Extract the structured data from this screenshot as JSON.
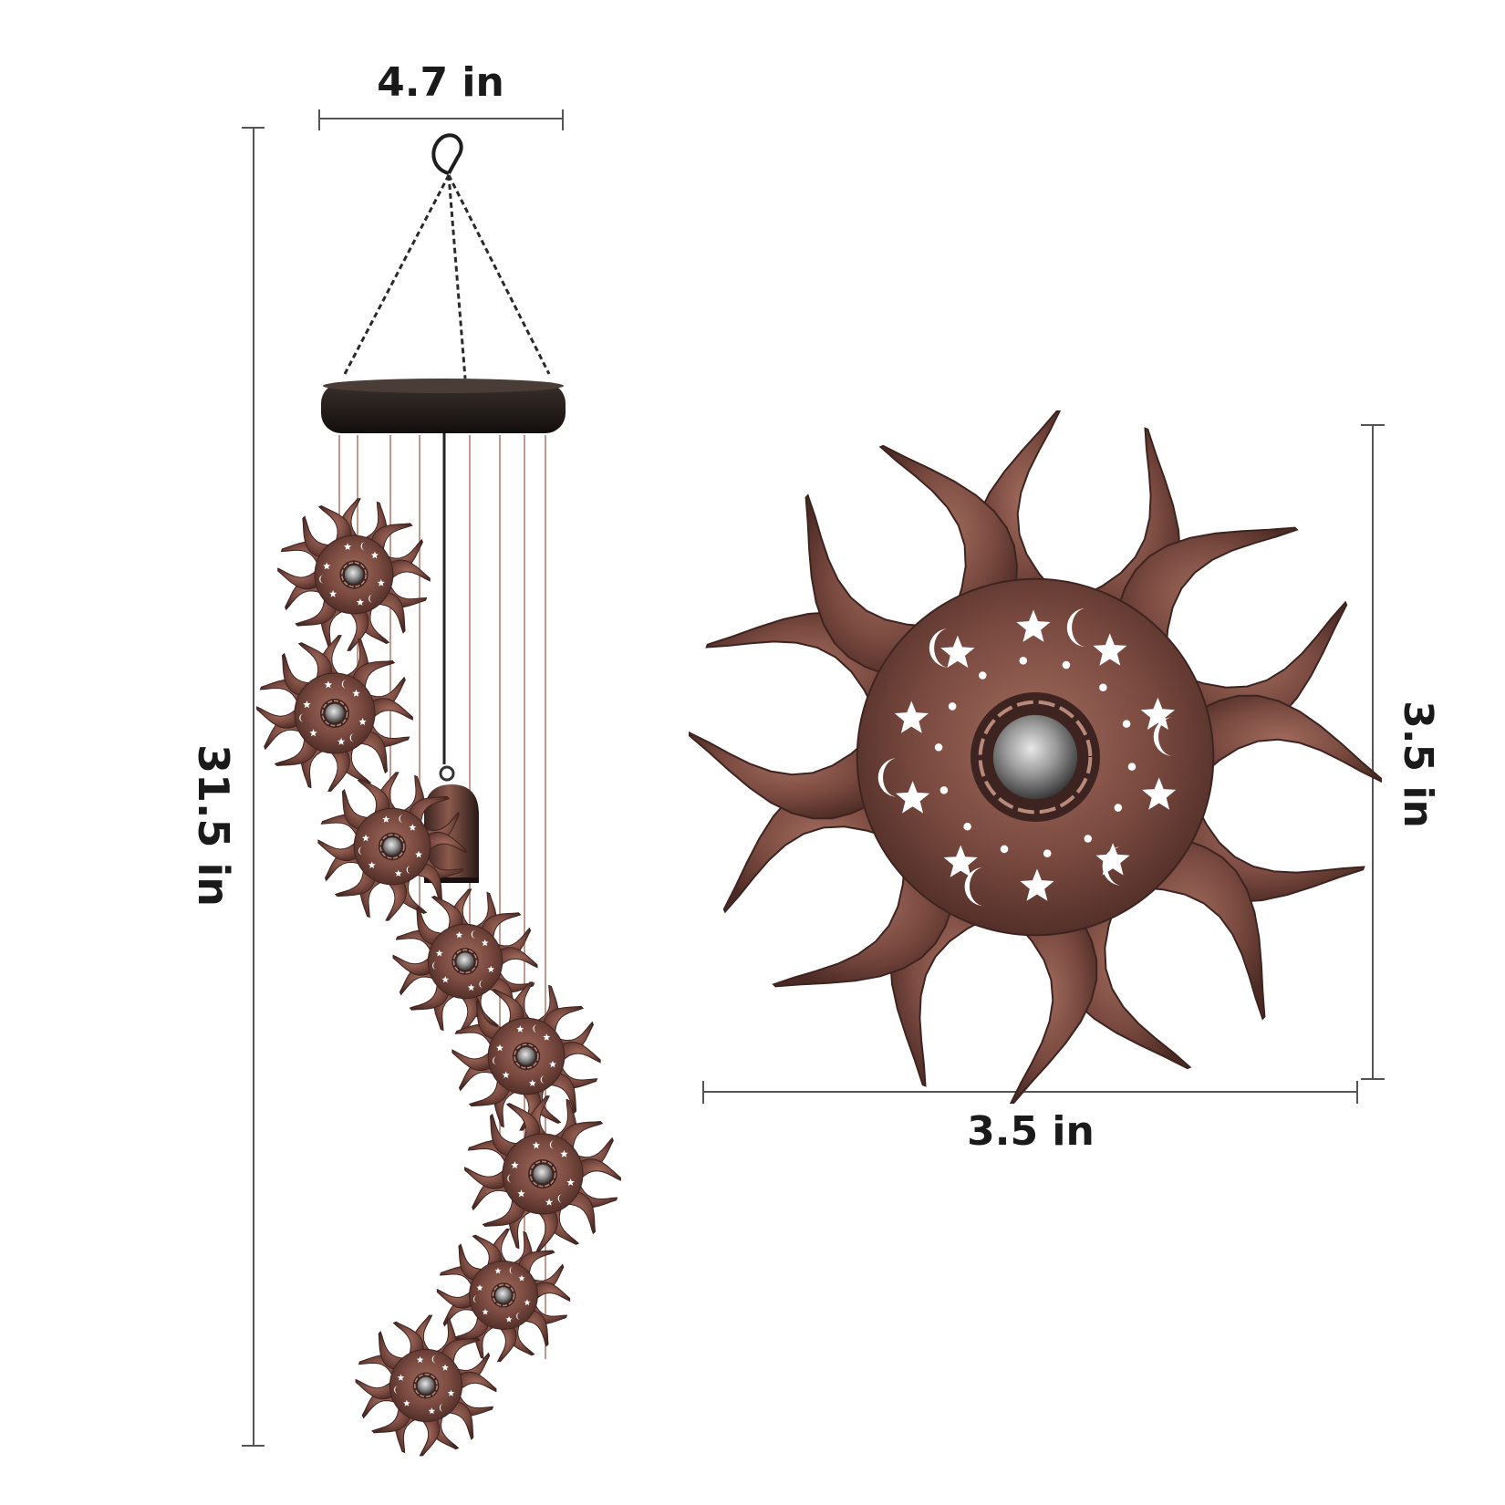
{
  "dimensions": {
    "chime_width": "4.7 in",
    "chime_height": "31.5 in",
    "sun_width": "3.5 in",
    "sun_height": "3.5 in"
  },
  "colors": {
    "copper": "#7a4a40",
    "copper_light": "#b98a7c",
    "copper_dark": "#3e2420",
    "ring": "#1c1614",
    "chain": "#2a2a2a",
    "string": "#c49a8e",
    "dimension_line": "#555555"
  },
  "icons": [
    "hook-icon",
    "sun-ornament-icon",
    "bell-icon",
    "star-icon",
    "moon-icon",
    "crystal-ball-icon"
  ]
}
